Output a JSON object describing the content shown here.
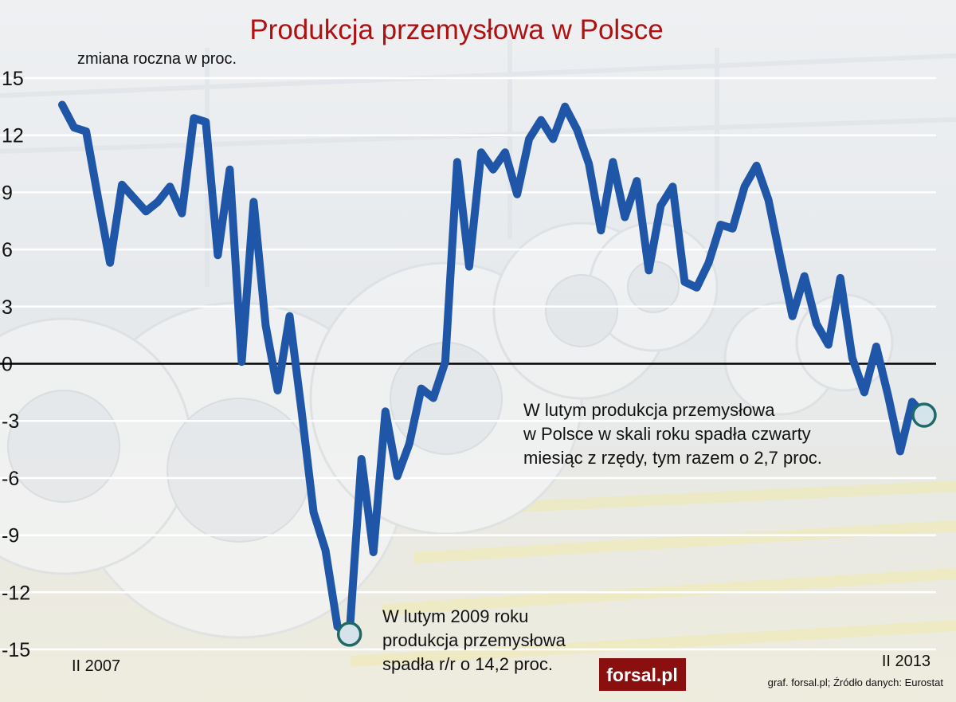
{
  "chart_data": {
    "type": "line",
    "title": "Produkcja przemysłowa w Polsce",
    "ylabel": "zmiana roczna w proc.",
    "ylim": [
      -15,
      15
    ],
    "yticks": [
      15,
      12,
      9,
      6,
      3,
      0,
      -3,
      -6,
      -9,
      -12,
      -15
    ],
    "ytick_labels": [
      "15",
      "12",
      "9",
      "6",
      "3",
      "0",
      "-3",
      "-6",
      "-9",
      "-12",
      "-15"
    ],
    "x_start_label": "II 2007",
    "x_end_label": "II 2013",
    "grid": true,
    "series": [
      {
        "color": "#1f56a8",
        "values": [
          13.6,
          12.4,
          12.2,
          8.7,
          5.3,
          9.4,
          8.7,
          8.0,
          8.5,
          9.3,
          7.9,
          12.9,
          12.7,
          5.7,
          10.2,
          0.1,
          8.5,
          2.0,
          -1.4,
          2.5,
          -2.5,
          -7.8,
          -9.8,
          -13.8,
          -14.2,
          -5.0,
          -9.9,
          -2.5,
          -5.9,
          -4.2,
          -1.3,
          -1.8,
          0.1,
          10.6,
          5.1,
          11.1,
          10.2,
          11.1,
          8.9,
          11.8,
          12.8,
          11.8,
          13.5,
          12.3,
          10.5,
          7.0,
          10.6,
          7.7,
          9.6,
          4.9,
          8.3,
          9.3,
          4.3,
          4.0,
          5.3,
          7.3,
          7.1,
          9.3,
          10.4,
          8.6,
          5.5,
          2.5,
          4.6,
          2.1,
          1.0,
          4.5,
          0.3,
          -1.5,
          0.9,
          -1.7,
          -4.6,
          -2.0,
          -2.7
        ]
      }
    ],
    "annotations": [
      {
        "lines": [
          "W lutym 2009 roku",
          "produkcja przemysłowa",
          "spadła r/r o 14,2 proc."
        ],
        "marker_value": -14.2
      },
      {
        "lines": [
          "W lutym produkcja przemysłowa",
          "w Polsce w skali roku spadła czwarty",
          "miesiąc z rzędy, tym razem o 2,7 proc."
        ],
        "marker_value": -2.7
      }
    ],
    "colors": {
      "title": "#b01010",
      "line": "#1f56a8",
      "marker_fill": "#d5e4ea",
      "marker_stroke": "#1f6a68",
      "zero_line": "#000000"
    }
  },
  "footer": {
    "logo": "forsal.pl",
    "source": "graf. forsal.pl;   Źródło danych: Eurostat"
  }
}
